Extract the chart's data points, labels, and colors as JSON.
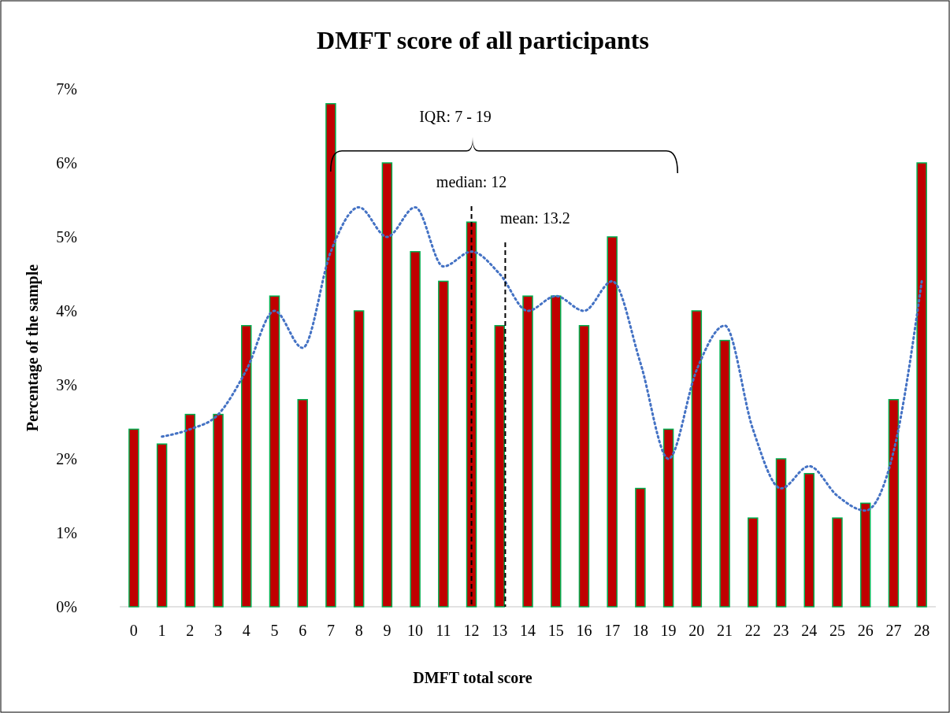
{
  "chart_data": {
    "type": "bar",
    "title": "DMFT score of all participants",
    "xlabel": "DMFT total score",
    "ylabel": "Percentage of the sample",
    "x": [
      0,
      1,
      2,
      3,
      4,
      5,
      6,
      7,
      8,
      9,
      10,
      11,
      12,
      13,
      14,
      15,
      16,
      17,
      18,
      19,
      20,
      21,
      22,
      23,
      24,
      25,
      26,
      27,
      28
    ],
    "xlim": [
      -0.5,
      28.5
    ],
    "xticks": [
      0,
      1,
      2,
      3,
      4,
      5,
      6,
      7,
      8,
      9,
      10,
      11,
      12,
      13,
      14,
      15,
      16,
      17,
      18,
      19,
      20,
      21,
      22,
      23,
      24,
      25,
      26,
      27,
      28
    ],
    "ylim": [
      0,
      7
    ],
    "yticks": [
      {
        "value": 0,
        "label": "0%"
      },
      {
        "value": 1,
        "label": "1%"
      },
      {
        "value": 2,
        "label": "2%"
      },
      {
        "value": 3,
        "label": "3%"
      },
      {
        "value": 4,
        "label": "4%"
      },
      {
        "value": 5,
        "label": "5%"
      },
      {
        "value": 6,
        "label": "6%"
      },
      {
        "value": 7,
        "label": "7%"
      }
    ],
    "series": [
      {
        "color": "#c00000",
        "values": [
          2.4,
          2.2,
          2.6,
          2.6,
          3.8,
          4.2,
          2.8,
          6.8,
          4.0,
          6.0,
          4.8,
          4.4,
          5.2,
          3.8,
          4.2,
          4.2,
          3.8,
          5.0,
          1.6,
          2.4,
          4.0,
          3.6,
          1.2,
          2.0,
          1.8,
          1.2,
          1.4,
          2.8,
          6.0
        ]
      },
      {
        "type": "line",
        "color": "#4472c4",
        "line_style": "dotted",
        "marker": "none",
        "x": [
          1,
          2,
          3,
          4,
          5,
          6,
          7,
          8,
          9,
          10,
          11,
          12,
          13,
          14,
          15,
          16,
          17,
          18,
          19,
          20,
          21,
          22,
          23,
          24,
          25,
          26,
          27,
          28
        ],
        "values": [
          2.3,
          2.4,
          2.6,
          3.2,
          4.0,
          3.5,
          4.8,
          5.4,
          5.0,
          5.4,
          4.6,
          4.8,
          4.5,
          4.0,
          4.2,
          4.0,
          4.4,
          3.3,
          2.0,
          3.2,
          3.8,
          2.4,
          1.6,
          1.9,
          1.5,
          1.3,
          2.1,
          4.4
        ]
      }
    ],
    "ref_lines": [
      {
        "axis": "x",
        "value": 12,
        "label": "median: 12",
        "line_style": "dashed",
        "color": "#000000"
      },
      {
        "axis": "x",
        "value": 13.2,
        "label": "mean: 13.2",
        "line_style": "dashed",
        "color": "#000000"
      }
    ],
    "annotations": [
      "IQR: 7 - 19"
    ],
    "grid": false
  }
}
